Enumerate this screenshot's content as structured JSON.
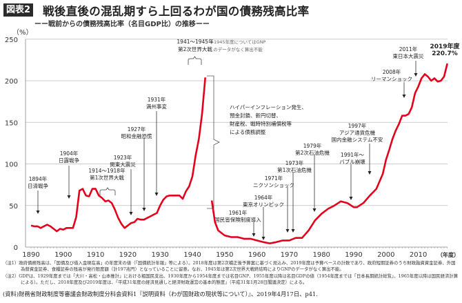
{
  "header": {
    "badge": "図表2",
    "title": "戦後直後の混乱期すら上回るわが国の債務残高比率",
    "subtitle": "ーー戦前からの債務残高比率（名目GDP比）の推移ーー"
  },
  "chart_data": {
    "type": "line",
    "title": "戦後直後の混乱期すら上回るわが国の債務残高比率",
    "ylabel": "（%）",
    "xlabel": "（年度）",
    "ylim": [
      0,
      250
    ],
    "xlim": [
      1890,
      2019
    ],
    "y_ticks": [
      "0",
      "50",
      "100",
      "150",
      "200",
      "250"
    ],
    "x_ticks": [
      "1890",
      "1900",
      "1910",
      "1920",
      "1930",
      "1940",
      "1950",
      "1960",
      "1970",
      "1980",
      "1990",
      "2000",
      "2010"
    ],
    "grid": "horizontal",
    "color": "#e3001b",
    "series": [
      {
        "segment": "prewar",
        "x": [
          1890,
          1891,
          1892,
          1893,
          1894,
          1895,
          1896,
          1897,
          1898,
          1899,
          1900,
          1901,
          1902,
          1903,
          1904,
          1905,
          1906,
          1907,
          1908,
          1909,
          1910,
          1911,
          1912,
          1913,
          1914,
          1915,
          1916,
          1917,
          1918,
          1919,
          1920,
          1921,
          1922,
          1923,
          1924,
          1925,
          1926,
          1927,
          1928,
          1929,
          1930,
          1931,
          1932,
          1933,
          1934,
          1935,
          1936,
          1937,
          1938,
          1939,
          1940,
          1941,
          1942,
          1943,
          1944
        ],
        "y": [
          26,
          25,
          25,
          23,
          25,
          27,
          25,
          22,
          19,
          22,
          21,
          23,
          23,
          23,
          36,
          68,
          70,
          62,
          61,
          70,
          70,
          62,
          59,
          55,
          56,
          53,
          45,
          35,
          28,
          23,
          26,
          29,
          30,
          34,
          33,
          33,
          35,
          37,
          39,
          41,
          50,
          57,
          61,
          62,
          62,
          62,
          62,
          58,
          67,
          73,
          85,
          110,
          130,
          160,
          204
        ]
      },
      {
        "segment": "postwar",
        "x": [
          1946,
          1947,
          1948,
          1949,
          1950,
          1952,
          1954,
          1956,
          1958,
          1960,
          1962,
          1964,
          1966,
          1968,
          1970,
          1972,
          1974,
          1976,
          1978,
          1980,
          1982,
          1984,
          1986,
          1988,
          1990,
          1991,
          1993,
          1995,
          1997,
          1999,
          2000,
          2001,
          2002,
          2003,
          2004,
          2005,
          2006,
          2007,
          2008,
          2009,
          2010,
          2011,
          2012,
          2013,
          2014,
          2015,
          2016,
          2017,
          2018,
          2019
        ],
        "y": [
          56,
          30,
          20,
          17,
          14,
          12,
          12,
          10,
          10,
          8,
          6,
          4.5,
          6,
          8,
          8,
          11,
          11,
          20,
          32,
          40,
          46,
          50,
          55,
          53,
          48,
          48,
          53,
          62,
          70,
          88,
          105,
          117,
          130,
          140,
          148,
          158,
          158,
          160,
          168,
          185,
          193,
          203,
          208,
          205,
          200,
          203,
          199,
          200,
          205,
          220.7
        ]
      }
    ],
    "annotations": [
      {
        "lines": [
          "1894年",
          "日清戦争"
        ]
      },
      {
        "lines": [
          "1904年",
          "日露戦争"
        ]
      },
      {
        "lines": [
          "1914～1918年",
          "第1次世界大戦"
        ]
      },
      {
        "lines": [
          "1923年",
          "関東大震災"
        ]
      },
      {
        "lines": [
          "1927年",
          "昭和金融恐慌"
        ]
      },
      {
        "lines": [
          "1931年",
          "満州事変"
        ]
      },
      {
        "lines": [
          "1941～1945年",
          "第2次世界大戦"
        ]
      },
      {
        "lines": [
          "※1945年度についてはGNP",
          "のデータがなく算出不能"
        ]
      },
      {
        "lines": [
          "ハイパーインフレーション発生、",
          "預金封鎖、新円切替、",
          "財産税、戦時特別補償税等",
          "による債務調整"
        ]
      },
      {
        "lines": [
          "1961年",
          "国民皆保険制度導入"
        ]
      },
      {
        "lines": [
          "1964年",
          "東京オリンピック"
        ]
      },
      {
        "lines": [
          "1971年",
          "ニクソンショック"
        ]
      },
      {
        "lines": [
          "1973年",
          "第1次石油危機"
        ]
      },
      {
        "lines": [
          "1979年",
          "第2次石油危機"
        ]
      },
      {
        "lines": [
          "1991年～",
          "バブル崩壊"
        ]
      },
      {
        "lines": [
          "1997年",
          "アジア通貨危機",
          "国内金融システム不安"
        ]
      },
      {
        "lines": [
          "2008年",
          "リーマンショック"
        ]
      },
      {
        "lines": [
          "2011年",
          "東日本大震災"
        ]
      },
      {
        "lines": [
          "2019年度",
          "220.7%"
        ]
      }
    ]
  },
  "notes": [
    "（注1）政府債務残高は、「国債及び借入金現在高」の年度末の値（「国債統計年報」等による）。2018年度は第2次補正後予算案に基づく見込み、2019年度は予算ベースの計数であり、政府短期証券のうち財政融資資金証券、外国為替資金証券、食糧証券の残高が発行限度額（計197兆円）となっていることに留意。なお、1945年は第2次世界大戦終結時によりGNPのデータがなく算出不能。",
    "（注2）GDPは、1929年度までは「大川・高松・山本推計」における粗国民支出、1930年度から1954年度までは名目GNP、1955年度以降は名目GDPの値（1954年度までは「日本長期統計総覧」、1965年度以降は国民経済計算による）。ただし、2018年度及び2019年度は、「平成31年度の経済見通しと経済財政運営の基本的態度」（平成31年1月28日閣議決定）による。"
  ],
  "source": "(資料)財務省財政制度等審議会財政制度分科会資料1『説明資料（わが国財政の現状等について）』、2019年4月17日、p41."
}
